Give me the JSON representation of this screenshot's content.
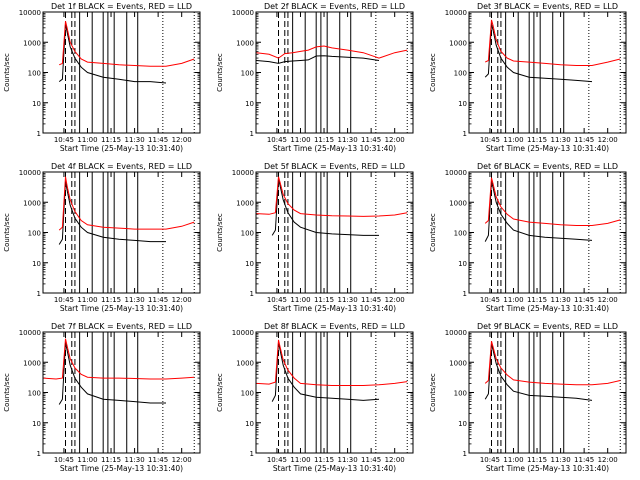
{
  "colors": {
    "events": "#000000",
    "lld": "#ff0000",
    "axis": "#000000"
  },
  "chart_data": [
    {
      "type": "line",
      "title": "Det 1f BLACK = Events, RED = LLD",
      "xlabel": "Start Time (25-May-13 10:31:40)",
      "ylabel": "Counts/sec",
      "yscale": "log",
      "ylim": [
        1,
        10000
      ],
      "xticks": [
        "10:45",
        "11:00",
        "11:15",
        "11:30",
        "11:45",
        "12:00"
      ],
      "yticks": [
        "1",
        "10",
        "100",
        "1000",
        "10000"
      ],
      "series": [
        {
          "name": "Events",
          "x": [
            "10:42",
            "10:44",
            "10:46",
            "10:47",
            "10:49",
            "10:52",
            "10:56",
            "11:00",
            "11:10",
            "11:20",
            "11:30",
            "11:40",
            "11:50"
          ],
          "values": [
            50,
            60,
            4000,
            2200,
            700,
            300,
            150,
            100,
            70,
            60,
            50,
            50,
            45
          ]
        },
        {
          "name": "LLD",
          "x": [
            "10:42",
            "10:44",
            "10:46",
            "10:47",
            "10:49",
            "10:52",
            "10:56",
            "11:00",
            "11:10",
            "11:20",
            "11:30",
            "11:40",
            "11:50",
            "12:00",
            "12:08"
          ],
          "values": [
            180,
            200,
            5000,
            3000,
            1000,
            500,
            280,
            220,
            200,
            180,
            170,
            160,
            160,
            200,
            280
          ]
        }
      ]
    },
    {
      "type": "line",
      "title": "Det 2f BLACK = Events, RED = LLD",
      "xlabel": "Start Time (25-May-13 10:31:40)",
      "ylabel": "Counts/sec",
      "yscale": "log",
      "ylim": [
        1,
        10000
      ],
      "xticks": [
        "10:45",
        "11:00",
        "11:15",
        "11:30",
        "11:45",
        "12:00"
      ],
      "yticks": [
        "1",
        "10",
        "100",
        "1000",
        "10000"
      ],
      "series": [
        {
          "name": "Events",
          "x": [
            "10:32",
            "10:40",
            "10:46",
            "10:50",
            "10:55",
            "11:00",
            "11:05",
            "11:10",
            "11:15",
            "11:20",
            "11:30",
            "11:40",
            "11:50"
          ],
          "values": [
            250,
            230,
            200,
            230,
            240,
            250,
            260,
            350,
            360,
            340,
            320,
            300,
            250
          ]
        },
        {
          "name": "LLD",
          "x": [
            "10:32",
            "10:40",
            "10:46",
            "10:50",
            "10:55",
            "11:00",
            "11:05",
            "11:10",
            "11:15",
            "11:20",
            "11:30",
            "11:40",
            "11:50",
            "12:00",
            "12:08"
          ],
          "values": [
            450,
            400,
            300,
            420,
            450,
            500,
            550,
            700,
            750,
            650,
            550,
            450,
            300,
            450,
            550
          ]
        }
      ]
    },
    {
      "type": "line",
      "title": "Det 3f BLACK = Events, RED = LLD",
      "xlabel": "Start Time (25-May-13 10:31:40)",
      "ylabel": "Counts/sec",
      "yscale": "log",
      "ylim": [
        1,
        10000
      ],
      "xticks": [
        "10:45",
        "11:00",
        "11:15",
        "11:30",
        "11:45",
        "12:00"
      ],
      "yticks": [
        "1",
        "10",
        "100",
        "1000",
        "10000"
      ],
      "series": [
        {
          "name": "Events",
          "x": [
            "10:42",
            "10:44",
            "10:46",
            "10:47",
            "10:49",
            "10:52",
            "10:56",
            "11:00",
            "11:10",
            "11:20",
            "11:30",
            "11:40",
            "11:50"
          ],
          "values": [
            70,
            90,
            4000,
            2500,
            800,
            300,
            150,
            100,
            70,
            65,
            60,
            55,
            50
          ]
        },
        {
          "name": "LLD",
          "x": [
            "10:42",
            "10:44",
            "10:46",
            "10:47",
            "10:49",
            "10:52",
            "10:56",
            "11:00",
            "11:10",
            "11:20",
            "11:30",
            "11:40",
            "11:50",
            "12:00",
            "12:08"
          ],
          "values": [
            220,
            250,
            5500,
            3500,
            1200,
            500,
            300,
            240,
            220,
            200,
            180,
            170,
            170,
            220,
            280
          ]
        }
      ]
    },
    {
      "type": "line",
      "title": "Det 4f BLACK = Events, RED = LLD",
      "xlabel": "Start Time (25-May-13 10:31:40)",
      "ylabel": "Counts/sec",
      "yscale": "log",
      "ylim": [
        1,
        10000
      ],
      "xticks": [
        "10:45",
        "11:00",
        "11:15",
        "11:30",
        "11:45",
        "12:00"
      ],
      "yticks": [
        "1",
        "10",
        "100",
        "1000",
        "10000"
      ],
      "series": [
        {
          "name": "Events",
          "x": [
            "10:42",
            "10:44",
            "10:46",
            "10:47",
            "10:49",
            "10:52",
            "10:56",
            "11:00",
            "11:10",
            "11:20",
            "11:30",
            "11:40",
            "11:50"
          ],
          "values": [
            40,
            60,
            5000,
            2500,
            800,
            300,
            150,
            100,
            70,
            60,
            55,
            50,
            50
          ]
        },
        {
          "name": "LLD",
          "x": [
            "10:42",
            "10:44",
            "10:46",
            "10:47",
            "10:49",
            "10:52",
            "10:56",
            "11:00",
            "11:10",
            "11:20",
            "11:30",
            "11:40",
            "11:50",
            "12:00",
            "12:08"
          ],
          "values": [
            120,
            150,
            7000,
            3500,
            1200,
            500,
            250,
            180,
            150,
            140,
            130,
            130,
            130,
            160,
            220
          ]
        }
      ]
    },
    {
      "type": "line",
      "title": "Det 5f BLACK = Events, RED = LLD",
      "xlabel": "Start Time (25-May-13 10:31:40)",
      "ylabel": "Counts/sec",
      "yscale": "log",
      "ylim": [
        1,
        10000
      ],
      "xticks": [
        "10:45",
        "11:00",
        "11:15",
        "11:30",
        "11:45",
        "12:00"
      ],
      "yticks": [
        "1",
        "10",
        "100",
        "1000",
        "10000"
      ],
      "series": [
        {
          "name": "Events",
          "x": [
            "10:42",
            "10:44",
            "10:46",
            "10:47",
            "10:49",
            "10:52",
            "10:56",
            "11:00",
            "11:10",
            "11:20",
            "11:30",
            "11:40",
            "11:50"
          ],
          "values": [
            80,
            120,
            6000,
            3500,
            1200,
            450,
            220,
            150,
            100,
            90,
            85,
            80,
            80
          ]
        },
        {
          "name": "LLD",
          "x": [
            "10:32",
            "10:40",
            "10:44",
            "10:46",
            "10:47",
            "10:49",
            "10:52",
            "10:56",
            "11:00",
            "11:10",
            "11:20",
            "11:30",
            "11:40",
            "11:50",
            "12:00",
            "12:08"
          ],
          "values": [
            420,
            400,
            450,
            7000,
            4500,
            1800,
            900,
            550,
            420,
            380,
            360,
            350,
            340,
            350,
            380,
            450
          ]
        }
      ]
    },
    {
      "type": "line",
      "title": "Det 6f BLACK = Events, RED = LLD",
      "xlabel": "Start Time (25-May-13 10:31:40)",
      "ylabel": "Counts/sec",
      "yscale": "log",
      "ylim": [
        1,
        10000
      ],
      "xticks": [
        "10:45",
        "11:00",
        "11:15",
        "11:30",
        "11:45",
        "12:00"
      ],
      "yticks": [
        "1",
        "10",
        "100",
        "1000",
        "10000"
      ],
      "series": [
        {
          "name": "Events",
          "x": [
            "10:42",
            "10:44",
            "10:46",
            "10:47",
            "10:49",
            "10:52",
            "10:56",
            "11:00",
            "11:10",
            "11:20",
            "11:30",
            "11:40",
            "11:50"
          ],
          "values": [
            50,
            80,
            5000,
            3000,
            1000,
            400,
            200,
            120,
            80,
            70,
            65,
            60,
            55
          ]
        },
        {
          "name": "LLD",
          "x": [
            "10:42",
            "10:44",
            "10:46",
            "10:47",
            "10:49",
            "10:52",
            "10:56",
            "11:00",
            "11:10",
            "11:20",
            "11:30",
            "11:40",
            "11:50",
            "12:00",
            "12:08"
          ],
          "values": [
            200,
            250,
            6500,
            4000,
            1500,
            700,
            400,
            280,
            220,
            200,
            180,
            170,
            170,
            200,
            260
          ]
        }
      ]
    },
    {
      "type": "line",
      "title": "Det 7f BLACK = Events, RED = LLD",
      "xlabel": "Start Time (25-May-13 10:31:40)",
      "ylabel": "Counts/sec",
      "yscale": "log",
      "ylim": [
        1,
        10000
      ],
      "xticks": [
        "10:45",
        "11:00",
        "11:15",
        "11:30",
        "11:45",
        "12:00"
      ],
      "yticks": [
        "1",
        "10",
        "100",
        "1000",
        "10000"
      ],
      "series": [
        {
          "name": "Events",
          "x": [
            "10:42",
            "10:44",
            "10:46",
            "10:47",
            "10:49",
            "10:52",
            "10:56",
            "11:00",
            "11:10",
            "11:20",
            "11:30",
            "11:40",
            "11:50"
          ],
          "values": [
            40,
            60,
            4500,
            2500,
            800,
            300,
            150,
            90,
            60,
            55,
            50,
            45,
            45
          ]
        },
        {
          "name": "LLD",
          "x": [
            "10:32",
            "10:40",
            "10:44",
            "10:46",
            "10:47",
            "10:49",
            "10:52",
            "10:56",
            "11:00",
            "11:10",
            "11:20",
            "11:30",
            "11:40",
            "11:50",
            "12:00",
            "12:08"
          ],
          "values": [
            300,
            280,
            300,
            6000,
            3500,
            1300,
            650,
            400,
            320,
            300,
            300,
            290,
            280,
            280,
            300,
            320
          ]
        }
      ]
    },
    {
      "type": "line",
      "title": "Det 8f BLACK = Events, RED = LLD",
      "xlabel": "Start Time (25-May-13 10:31:40)",
      "ylabel": "Counts/sec",
      "yscale": "log",
      "ylim": [
        1,
        10000
      ],
      "xticks": [
        "10:45",
        "11:00",
        "11:15",
        "11:30",
        "11:45",
        "12:00"
      ],
      "yticks": [
        "1",
        "10",
        "100",
        "1000",
        "10000"
      ],
      "series": [
        {
          "name": "Events",
          "x": [
            "10:42",
            "10:44",
            "10:46",
            "10:47",
            "10:49",
            "10:52",
            "10:56",
            "11:00",
            "11:10",
            "11:20",
            "11:30",
            "11:40",
            "11:50"
          ],
          "values": [
            50,
            80,
            4500,
            2500,
            800,
            300,
            150,
            90,
            70,
            65,
            60,
            55,
            60
          ]
        },
        {
          "name": "LLD",
          "x": [
            "10:32",
            "10:40",
            "10:44",
            "10:46",
            "10:47",
            "10:49",
            "10:52",
            "10:56",
            "11:00",
            "11:10",
            "11:20",
            "11:30",
            "11:40",
            "11:50",
            "12:00",
            "12:08"
          ],
          "values": [
            200,
            190,
            220,
            5500,
            3200,
            1200,
            550,
            300,
            200,
            180,
            170,
            170,
            170,
            180,
            200,
            230
          ]
        }
      ]
    },
    {
      "type": "line",
      "title": "Det 9f BLACK = Events, RED = LLD",
      "xlabel": "Start Time (25-May-13 10:31:40)",
      "ylabel": "Counts/sec",
      "yscale": "log",
      "ylim": [
        1,
        10000
      ],
      "xticks": [
        "10:45",
        "11:00",
        "11:15",
        "11:30",
        "11:45",
        "12:00"
      ],
      "yticks": [
        "1",
        "10",
        "100",
        "1000",
        "10000"
      ],
      "series": [
        {
          "name": "Events",
          "x": [
            "10:42",
            "10:44",
            "10:46",
            "10:47",
            "10:49",
            "10:52",
            "10:56",
            "11:00",
            "11:10",
            "11:20",
            "11:30",
            "11:40",
            "11:50"
          ],
          "values": [
            60,
            90,
            4000,
            2500,
            900,
            350,
            180,
            110,
            80,
            75,
            70,
            65,
            55
          ]
        },
        {
          "name": "LLD",
          "x": [
            "10:42",
            "10:44",
            "10:46",
            "10:47",
            "10:49",
            "10:52",
            "10:56",
            "11:00",
            "11:10",
            "11:20",
            "11:30",
            "11:40",
            "11:50",
            "12:00",
            "12:08"
          ],
          "values": [
            200,
            250,
            5000,
            3200,
            1300,
            650,
            380,
            260,
            220,
            200,
            190,
            180,
            180,
            200,
            250
          ]
        }
      ]
    }
  ]
}
